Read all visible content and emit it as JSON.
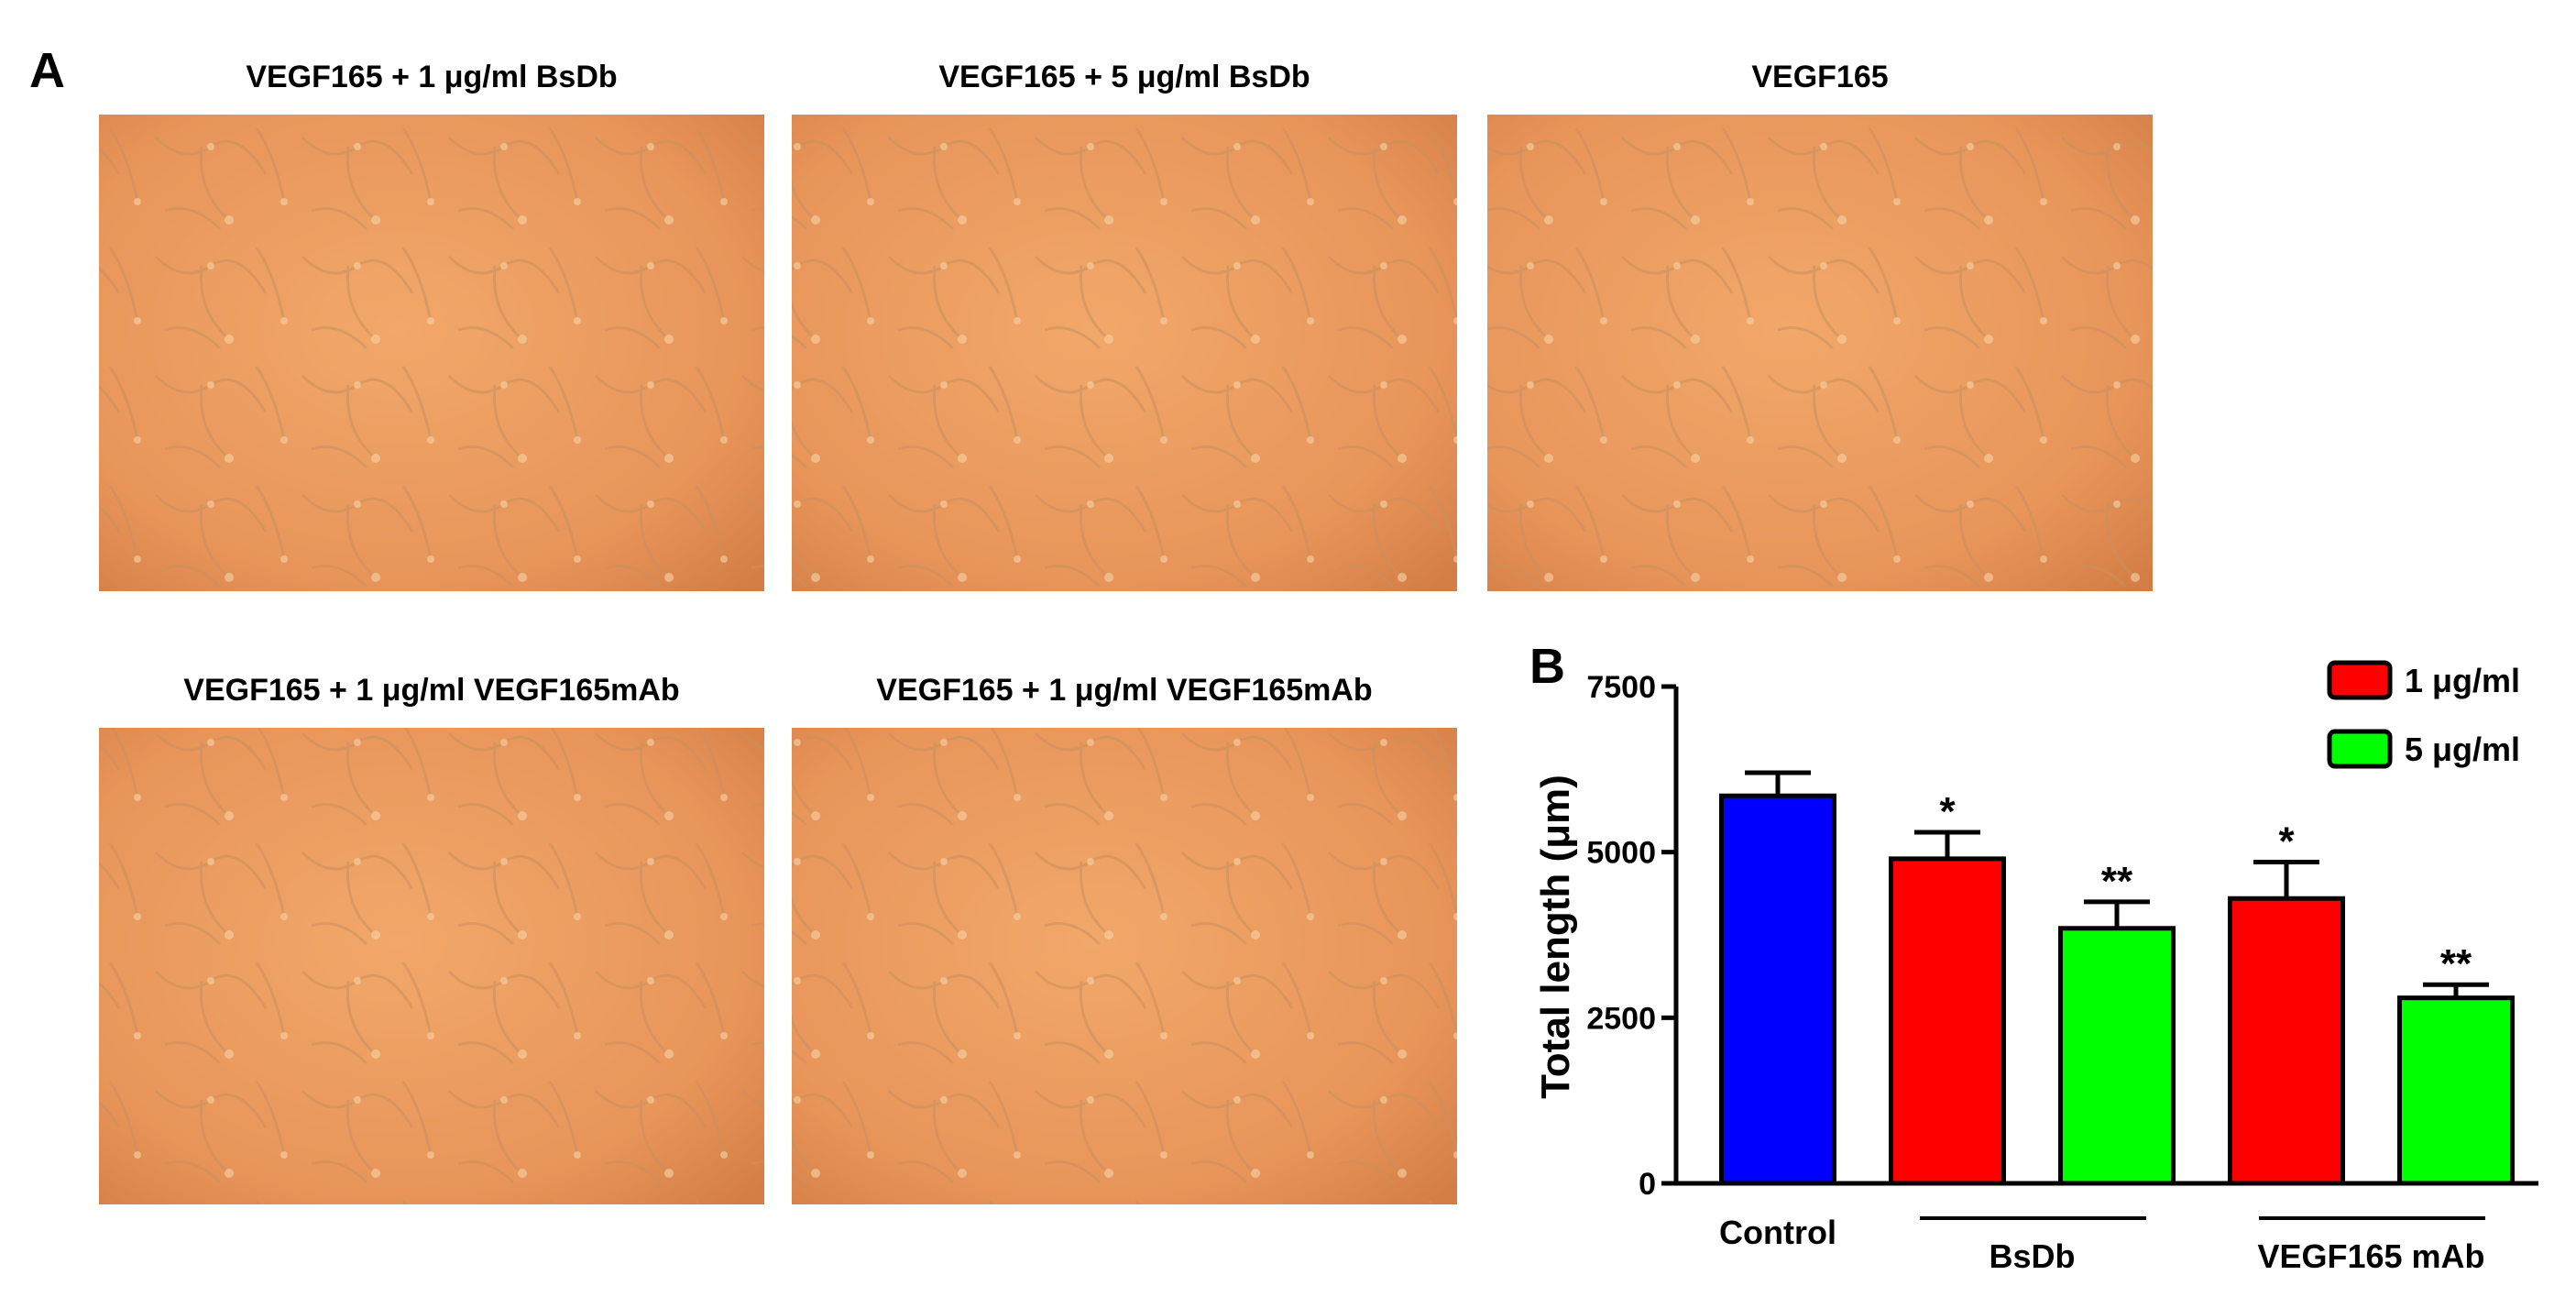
{
  "panel_a": {
    "label": "A",
    "images": [
      {
        "title": "VEGF165 + 1 μg/ml BsDb"
      },
      {
        "title": "VEGF165 + 5 μg/ml BsDb"
      },
      {
        "title": "VEGF165"
      },
      {
        "title": "VEGF165 + 1 μg/ml VEGF165mAb"
      },
      {
        "title": "VEGF165 + 1 μg/ml VEGF165mAb"
      }
    ]
  },
  "chart_data": {
    "type": "bar",
    "panel_label": "B",
    "y_label": "Total length (μm)",
    "categories": [
      "Control",
      "BsDb",
      "VEGF165 mAb"
    ],
    "series": [
      {
        "color": "#0000ff",
        "values": [
          5850,
          null,
          null
        ],
        "errors": [
          350,
          null,
          null
        ],
        "significance": [
          null,
          null,
          null
        ]
      },
      {
        "name": "1 μg/ml",
        "color": "#ff0000",
        "values": [
          null,
          4900,
          4300
        ],
        "errors": [
          null,
          400,
          550
        ],
        "significance": [
          null,
          "*",
          "*"
        ]
      },
      {
        "name": "5 μg/ml",
        "color": "#00ff00",
        "values": [
          null,
          3850,
          2800
        ],
        "errors": [
          null,
          400,
          200
        ],
        "significance": [
          null,
          "**",
          "**"
        ]
      }
    ],
    "ylim": [
      0,
      7500
    ],
    "yticks": [
      0,
      2500,
      5000,
      7500
    ],
    "legend": "top-right"
  }
}
